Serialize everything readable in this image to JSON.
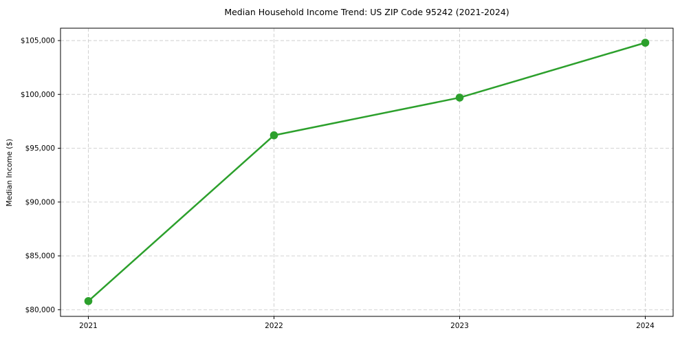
{
  "chart_data": {
    "type": "line",
    "title": "Median Household Income Trend: US ZIP Code 95242 (2021-2024)",
    "xlabel": "",
    "ylabel": "Median Income ($)",
    "x": [
      2021,
      2022,
      2023,
      2024
    ],
    "series": [
      {
        "name": "Median Household Income",
        "values": [
          80800,
          96200,
          99700,
          104800
        ]
      }
    ],
    "x_tick_labels": [
      "2021",
      "2022",
      "2023",
      "2024"
    ],
    "y_ticks": [
      80000,
      85000,
      90000,
      95000,
      100000,
      105000
    ],
    "y_tick_labels": [
      "$80,000",
      "$85,000",
      "$90,000",
      "$95,000",
      "$100,000",
      "$105,000"
    ],
    "xlim": [
      2020.85,
      2024.15
    ],
    "ylim": [
      79380,
      106150
    ],
    "grid": true,
    "grid_style": "dashed",
    "legend": "none",
    "colors": {
      "line": "#2ca02c",
      "marker": "#2ca02c",
      "grid": "#cdcdcd",
      "axis": "#000000",
      "background": "#ffffff"
    }
  }
}
